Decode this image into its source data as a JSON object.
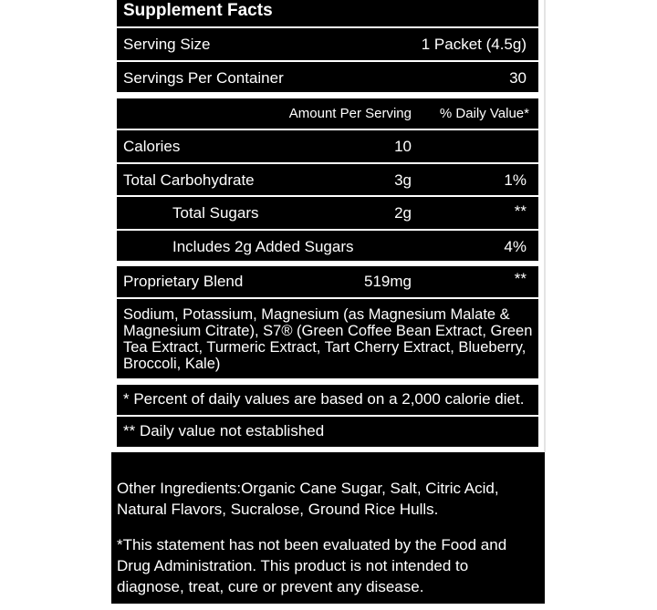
{
  "title": "Supplement Facts",
  "serving_size": {
    "label": "Serving Size",
    "value": "1 Packet (4.5g)"
  },
  "servings_per_container": {
    "label": "Servings Per Container",
    "value": "30"
  },
  "columns": {
    "amount": "Amount Per Serving",
    "dv": "% Daily Value*"
  },
  "nutrients": [
    {
      "name": "Calories",
      "amount": "10",
      "dv": ""
    },
    {
      "name": "Total Carbohydrate",
      "amount": "3g",
      "dv": "1%"
    },
    {
      "name": "Total Sugars",
      "amount": "2g",
      "dv": "**"
    },
    {
      "name": "Includes 2g Added Sugars",
      "amount": "",
      "dv": "4%"
    }
  ],
  "blend": {
    "name": "Proprietary Blend",
    "amount": "519mg",
    "dv": "**"
  },
  "blend_ingredients": "Sodium, Potassium, Magnesium (as Magnesium Malate & Magnesium Citrate), S7® (Green Coffee Bean Extract, Green Tea Extract, Turmeric Extract, Tart Cherry Extract, Blueberry, Broccoli, Kale)",
  "footnotes": {
    "percent": "* Percent of daily values are based on a 2,000 calorie diet.",
    "not_established": "** Daily value not established"
  },
  "other_ingredients": "Other Ingredients:Organic Cane Sugar, Salt, Citric Acid, Natural Flavors, Sucralose, Ground Rice Hulls.",
  "disclaimer": "*This statement has not been evaluated by the Food and Drug Administration. This product is not intended to diagnose, treat, cure or prevent any disease."
}
